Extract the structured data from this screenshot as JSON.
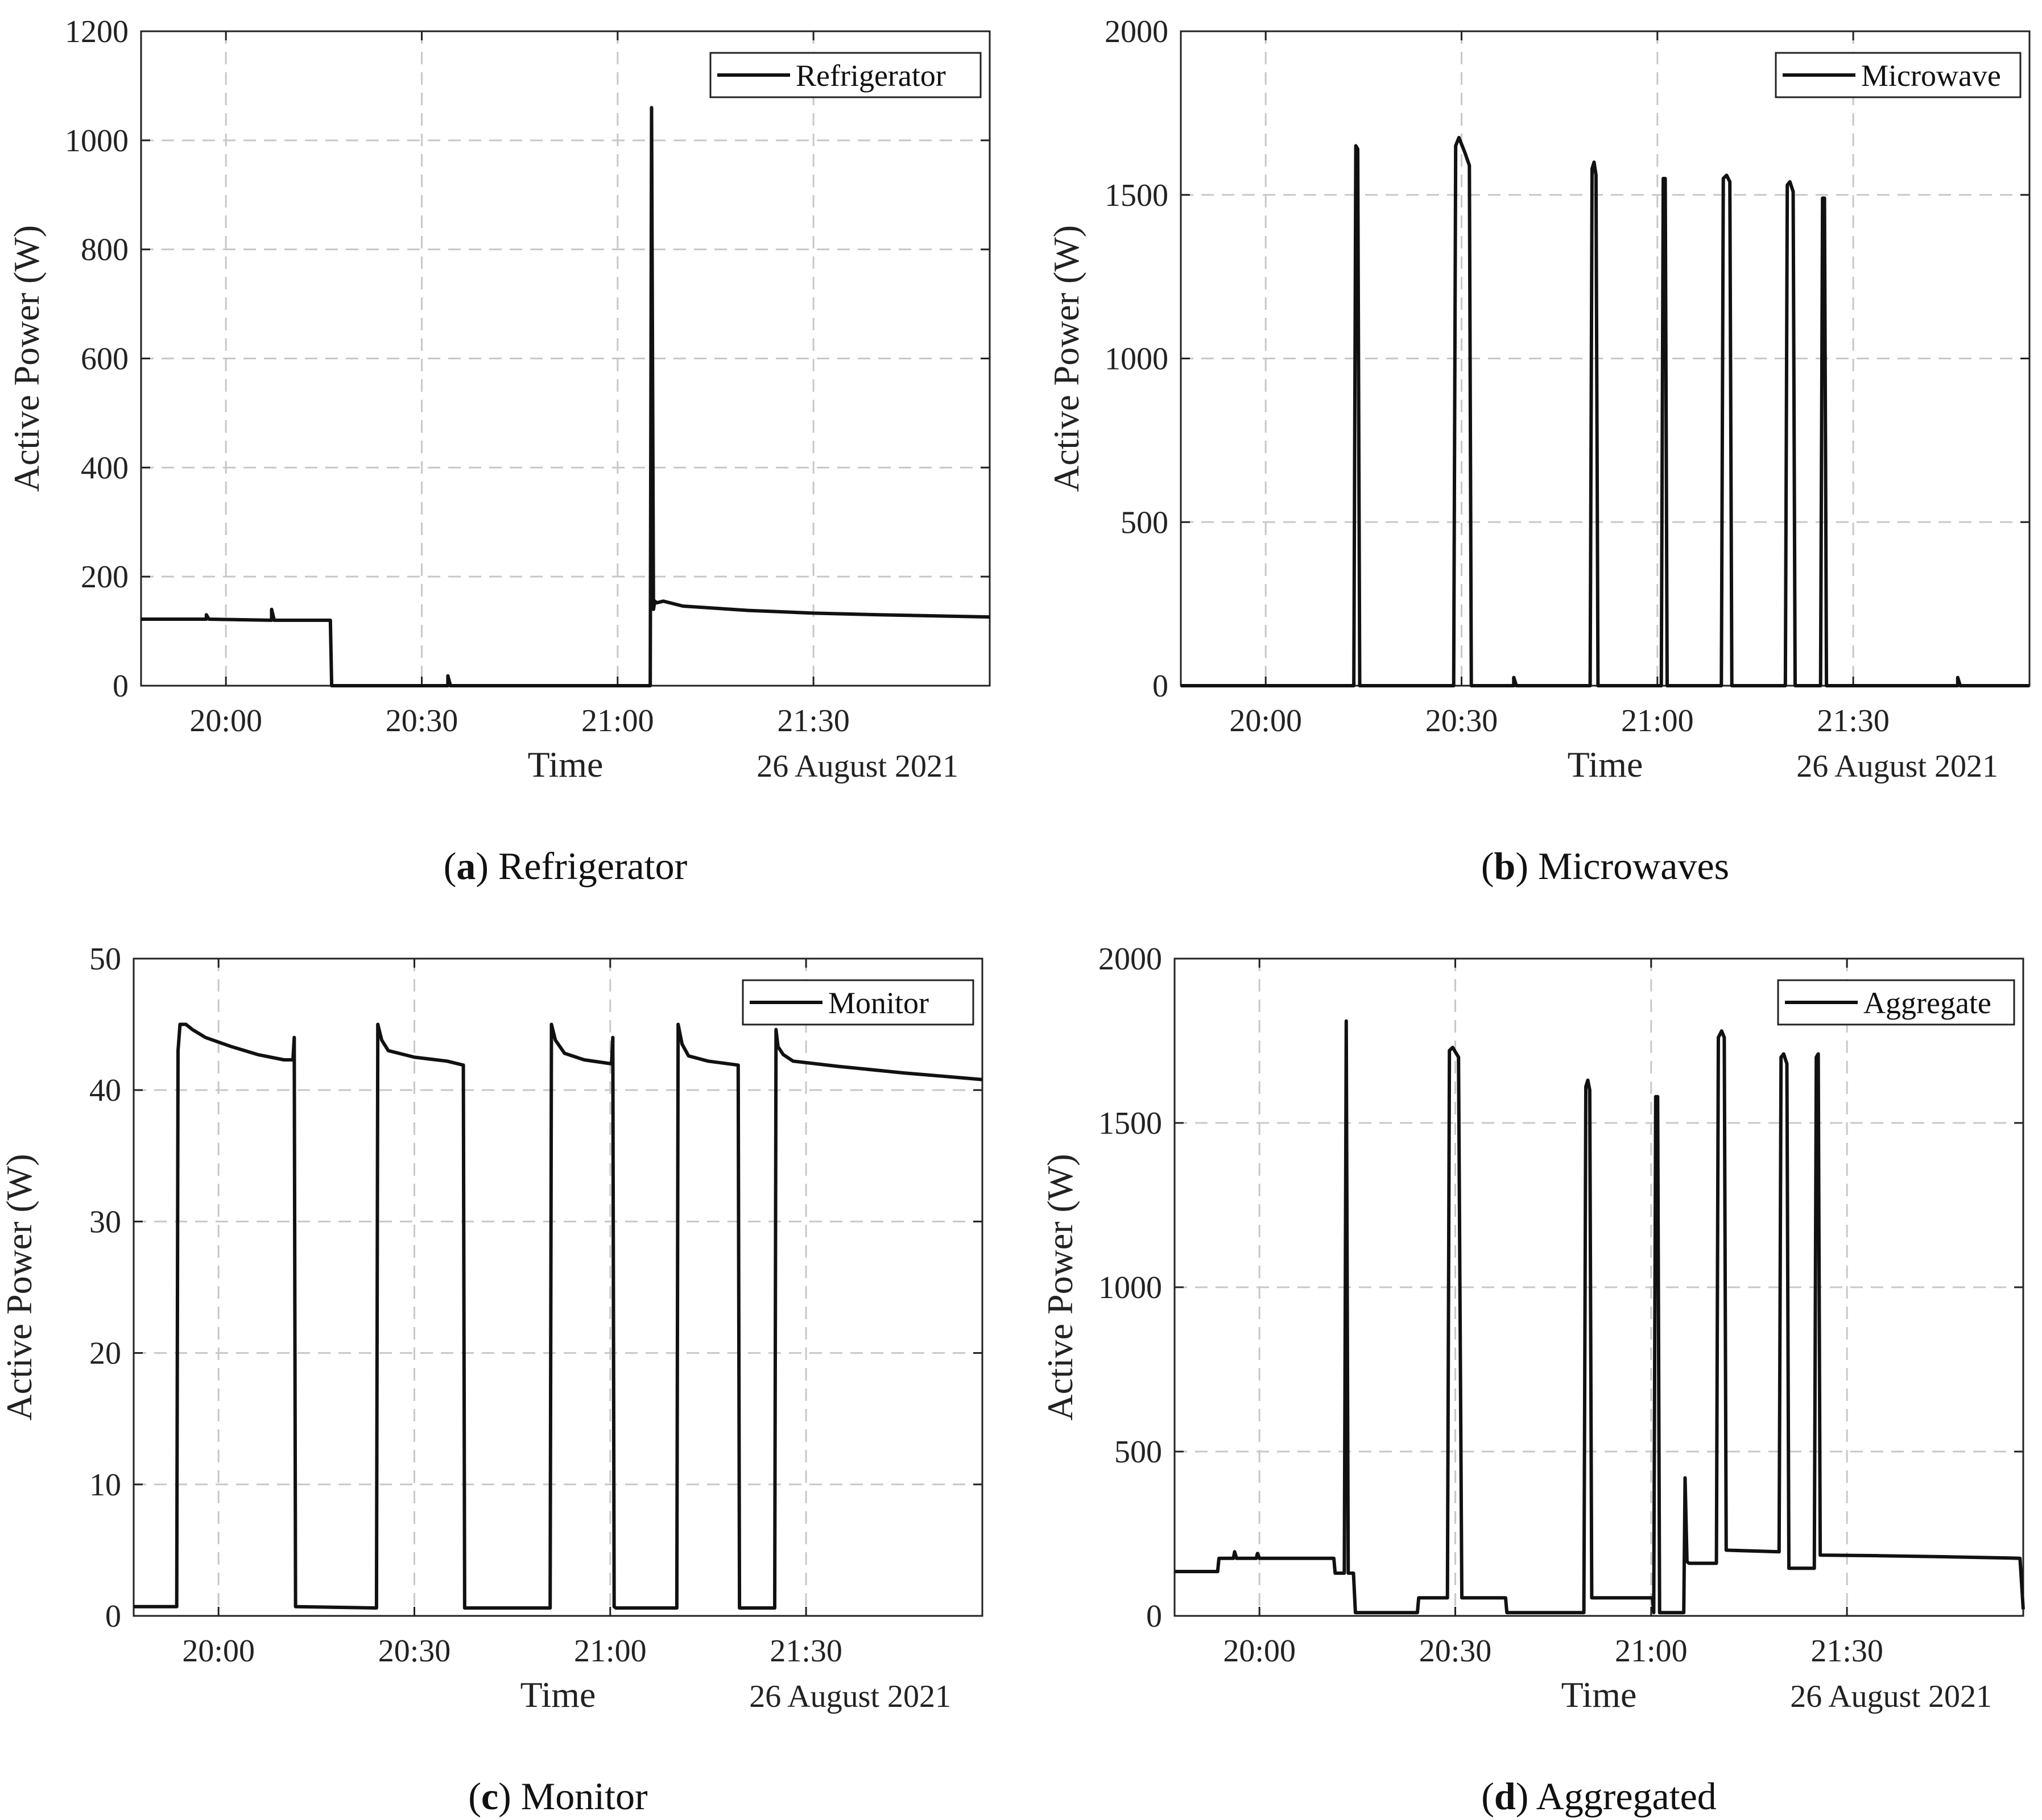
{
  "chart_data": [
    {
      "id": "a",
      "type": "line",
      "caption_label": "a",
      "caption_text": "Refrigerator",
      "legend": "Refrigerator",
      "ylabel": "Active Power (W)",
      "xlabel": "Time",
      "date_label": "26 August 2021",
      "xlim": [
        -13,
        117
      ],
      "ylim": [
        0,
        1200
      ],
      "yticks": [
        0,
        200,
        400,
        600,
        800,
        1000,
        1200
      ],
      "xticks": [
        0,
        30,
        60,
        90
      ],
      "xtick_labels": [
        "20:00",
        "20:30",
        "21:00",
        "21:30"
      ],
      "x_unit": "minutes after 20:00",
      "series": [
        {
          "name": "Refrigerator",
          "x": [
            -13,
            -3,
            -3,
            -2.6,
            7,
            7,
            7.4,
            16,
            16.2,
            34,
            34,
            34.4,
            65,
            65.2,
            65.5,
            65.7,
            66,
            67,
            70,
            80,
            90,
            100,
            117
          ],
          "y": [
            122,
            122,
            130,
            122,
            120,
            140,
            120,
            120,
            0,
            0,
            18,
            0,
            0,
            1060,
            140,
            155,
            152,
            155,
            146,
            138,
            133,
            130,
            126
          ]
        }
      ]
    },
    {
      "id": "b",
      "type": "line",
      "caption_label": "b",
      "caption_text": "Microwaves",
      "legend": "Microwave",
      "ylabel": "Active Power (W)",
      "xlabel": "Time",
      "date_label": "26 August 2021",
      "xlim": [
        -13,
        117
      ],
      "ylim": [
        0,
        2000
      ],
      "yticks": [
        0,
        500,
        1000,
        1500,
        2000
      ],
      "xticks": [
        0,
        30,
        60,
        90
      ],
      "xtick_labels": [
        "20:00",
        "20:30",
        "21:00",
        "21:30"
      ],
      "x_unit": "minutes after 20:00",
      "series": [
        {
          "name": "Microwave",
          "x": [
            -13,
            13.5,
            13.8,
            14.1,
            14.4,
            28.8,
            29.1,
            29.6,
            30.5,
            31.2,
            31.5,
            38,
            38,
            38.4,
            49.7,
            50,
            50.3,
            50.6,
            50.9,
            60.6,
            60.9,
            61.2,
            61.5,
            69.8,
            70.1,
            70.6,
            71.1,
            71.4,
            79.6,
            79.9,
            80.3,
            80.8,
            81.1,
            85,
            85.3,
            85.6,
            85.9,
            106,
            106,
            106.4,
            117
          ],
          "y": [
            0,
            0,
            1650,
            1640,
            0,
            0,
            1650,
            1675,
            1630,
            1590,
            0,
            0,
            25,
            0,
            0,
            1580,
            1600,
            1560,
            0,
            0,
            1550,
            1550,
            0,
            0,
            1550,
            1560,
            1540,
            0,
            0,
            1530,
            1540,
            1510,
            0,
            0,
            1490,
            1490,
            0,
            0,
            25,
            0,
            0
          ]
        }
      ]
    },
    {
      "id": "c",
      "type": "line",
      "caption_label": "c",
      "caption_text": "Monitor",
      "legend": "Monitor",
      "ylabel": "Active Power (W)",
      "xlabel": "Time",
      "date_label": "26 August 2021",
      "xlim": [
        -13,
        117
      ],
      "ylim": [
        0,
        50
      ],
      "yticks": [
        0,
        10,
        20,
        30,
        40,
        50
      ],
      "xticks": [
        0,
        30,
        60,
        90
      ],
      "xtick_labels": [
        "20:00",
        "20:30",
        "21:00",
        "21:30"
      ],
      "x_unit": "minutes after 20:00",
      "series": [
        {
          "name": "Monitor",
          "x": [
            -13,
            -6.4,
            -6.2,
            -5.9,
            -5,
            -4,
            -2,
            2,
            6,
            10,
            11.4,
            11.6,
            11.8,
            24.2,
            24.4,
            25,
            26,
            30,
            35,
            37.5,
            37.7,
            50.8,
            51,
            51.6,
            53,
            56,
            60.2,
            60.4,
            60.6,
            60.9,
            70.2,
            70.4,
            71,
            72,
            75,
            79.6,
            79.8,
            85.2,
            85.4,
            85.7,
            86.5,
            88,
            95,
            105,
            117
          ],
          "y": [
            0.7,
            0.7,
            43,
            45,
            45,
            44.6,
            44,
            43.3,
            42.7,
            42.3,
            42.3,
            44,
            0.7,
            0.6,
            45,
            43.8,
            43,
            42.5,
            42.2,
            41.9,
            0.6,
            0.6,
            45,
            43.8,
            42.8,
            42.3,
            42,
            44,
            0.7,
            0.6,
            0.6,
            45,
            43.5,
            42.6,
            42.2,
            41.9,
            0.6,
            0.6,
            44.6,
            43.3,
            42.7,
            42.2,
            41.8,
            41.3,
            40.8
          ]
        }
      ]
    },
    {
      "id": "d",
      "type": "line",
      "caption_label": "d",
      "caption_text": "Aggregated",
      "legend": "Aggregate",
      "ylabel": "Active Power (W)",
      "xlabel": "Time",
      "date_label": "26 August 2021",
      "xlim": [
        -13,
        117
      ],
      "ylim": [
        0,
        2000
      ],
      "yticks": [
        0,
        500,
        1000,
        1500,
        2000
      ],
      "xticks": [
        0,
        30,
        60,
        90
      ],
      "xtick_labels": [
        "20:00",
        "20:30",
        "21:00",
        "21:30"
      ],
      "x_unit": "minutes after 20:00",
      "series": [
        {
          "name": "Aggregate",
          "x": [
            -13,
            -6.4,
            -6.2,
            -4,
            -3.8,
            -3.5,
            -0.5,
            -0.3,
            0,
            11.4,
            11.6,
            13,
            13.3,
            13.6,
            14.4,
            14.7,
            15,
            16,
            16.2,
            24.2,
            24.4,
            28.8,
            29.1,
            29.6,
            30.5,
            31,
            37.7,
            37.9,
            49.7,
            50,
            50.3,
            50.6,
            50.9,
            60.2,
            60.4,
            60.7,
            61,
            61.3,
            65,
            65.2,
            65.5,
            65.8,
            70,
            70.3,
            70.8,
            71.2,
            71.5,
            79.6,
            79.9,
            80.3,
            80.8,
            81.1,
            85,
            85.3,
            85.6,
            85.9,
            95,
            105,
            115,
            116.5,
            117
          ],
          "y": [
            135,
            135,
            175,
            175,
            195,
            175,
            175,
            190,
            175,
            175,
            130,
            130,
            1810,
            130,
            130,
            10,
            10,
            10,
            10,
            10,
            55,
            55,
            1720,
            1730,
            1700,
            55,
            55,
            10,
            10,
            1610,
            1630,
            1600,
            55,
            55,
            10,
            1580,
            1580,
            10,
            10,
            420,
            165,
            160,
            160,
            1760,
            1780,
            1760,
            200,
            195,
            1700,
            1710,
            1680,
            145,
            145,
            1700,
            1710,
            185,
            183,
            180,
            176,
            175,
            20
          ]
        }
      ]
    }
  ]
}
